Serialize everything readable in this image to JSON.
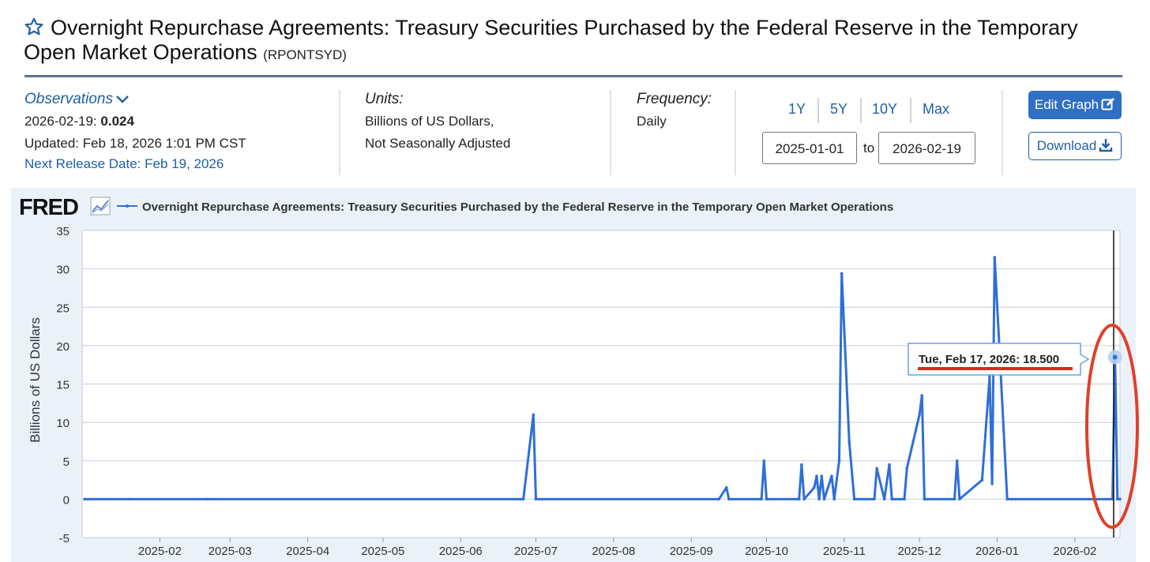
{
  "header": {
    "title": "Overnight Repurchase Agreements: Treasury Securities Purchased by the Federal Reserve in the Temporary Open Market Operations",
    "series_id": "(RPONTSYD)",
    "star_icon": "star-outline-icon"
  },
  "observations": {
    "label": "Observations",
    "date": "2026-02-19:",
    "value": "0.024",
    "updated": "Updated: Feb 18, 2026 1:01 PM CST",
    "next_release": "Next Release Date: Feb 19, 2026"
  },
  "units": {
    "label": "Units:",
    "line1": "Billions of US Dollars,",
    "line2": "Not Seasonally Adjusted"
  },
  "frequency": {
    "label": "Frequency:",
    "value": "Daily"
  },
  "range": {
    "buttons": [
      "1Y",
      "5Y",
      "10Y",
      "Max"
    ],
    "start": "2025-01-01",
    "to": "to",
    "end": "2026-02-19"
  },
  "actions": {
    "edit_graph": "Edit Graph",
    "download": "Download"
  },
  "chart_header": {
    "logo": "FRED",
    "legend": "Overnight Repurchase Agreements: Treasury Securities Purchased by the Federal Reserve in the Temporary Open Market Operations"
  },
  "tooltip": {
    "text": "Tue, Feb 17, 2026:",
    "value": "18.500"
  },
  "colors": {
    "series": "#2f6fd6",
    "grid": "#c9ced6",
    "highlight_circle": "#e0402a",
    "tooltip_underline": "#d42b1f"
  },
  "chart_data": {
    "type": "line",
    "title": "",
    "xlabel": "",
    "ylabel": "Billions of US Dollars",
    "ylim": [
      -5,
      35
    ],
    "yticks": [
      -5,
      0,
      5,
      10,
      15,
      20,
      25,
      30,
      35
    ],
    "xticks": [
      "2025-02",
      "2025-03",
      "2025-04",
      "2025-05",
      "2025-06",
      "2025-07",
      "2025-08",
      "2025-09",
      "2025-10",
      "2025-11",
      "2025-12",
      "2026-01",
      "2026-02"
    ],
    "xlim": [
      "2025-01-01",
      "2026-02-19"
    ],
    "grid": true,
    "legend": "top-left",
    "series": [
      {
        "name": "Overnight Repurchase Agreements: Treasury Securities Purchased by the Federal Reserve in the Temporary Open Market Operations",
        "points": [
          [
            "2025-01-02",
            0
          ],
          [
            "2025-01-20",
            0
          ],
          [
            "2025-02-20",
            0
          ],
          [
            "2025-06-26",
            0
          ],
          [
            "2025-06-30",
            11
          ],
          [
            "2025-07-01",
            0
          ],
          [
            "2025-09-12",
            0
          ],
          [
            "2025-09-15",
            1.5
          ],
          [
            "2025-09-16",
            0
          ],
          [
            "2025-09-29",
            0
          ],
          [
            "2025-09-30",
            5
          ],
          [
            "2025-10-01",
            0
          ],
          [
            "2025-10-14",
            0
          ],
          [
            "2025-10-15",
            4.5
          ],
          [
            "2025-10-16",
            0
          ],
          [
            "2025-10-20",
            1.5
          ],
          [
            "2025-10-21",
            3
          ],
          [
            "2025-10-22",
            0
          ],
          [
            "2025-10-23",
            3
          ],
          [
            "2025-10-24",
            0
          ],
          [
            "2025-10-27",
            3
          ],
          [
            "2025-10-28",
            0
          ],
          [
            "2025-10-30",
            5
          ],
          [
            "2025-10-31",
            29.4
          ],
          [
            "2025-11-03",
            7.5
          ],
          [
            "2025-11-05",
            0
          ],
          [
            "2025-11-13",
            0
          ],
          [
            "2025-11-14",
            4
          ],
          [
            "2025-11-17",
            0
          ],
          [
            "2025-11-19",
            4.5
          ],
          [
            "2025-11-20",
            0
          ],
          [
            "2025-11-25",
            0
          ],
          [
            "2025-11-26",
            4
          ],
          [
            "2025-12-01",
            11
          ],
          [
            "2025-12-02",
            13.5
          ],
          [
            "2025-12-03",
            0
          ],
          [
            "2025-12-15",
            0
          ],
          [
            "2025-12-16",
            5
          ],
          [
            "2025-12-17",
            0
          ],
          [
            "2025-12-26",
            2.5
          ],
          [
            "2025-12-29",
            16
          ],
          [
            "2025-12-30",
            2
          ],
          [
            "2025-12-31",
            31.5
          ],
          [
            "2026-01-02",
            19
          ],
          [
            "2026-01-05",
            0
          ],
          [
            "2026-02-16",
            0
          ],
          [
            "2026-02-17",
            18.5
          ],
          [
            "2026-02-18",
            0
          ],
          [
            "2026-02-19",
            0.024
          ]
        ]
      }
    ],
    "tooltip_point": [
      "2026-02-17",
      18.5
    ]
  }
}
